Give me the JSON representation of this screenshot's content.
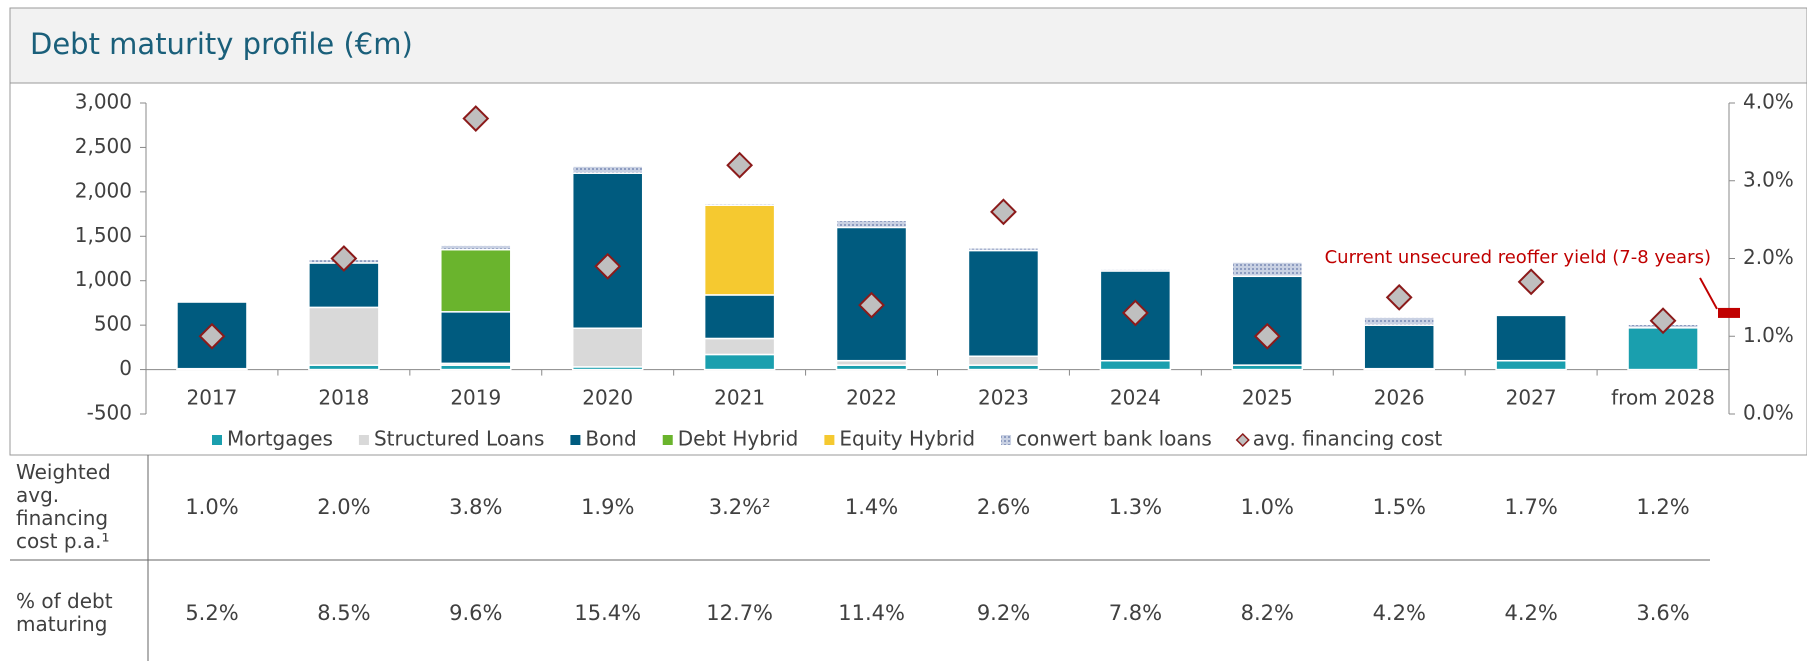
{
  "chart_data": {
    "type": "bar",
    "stacked": true,
    "title": "Debt maturity profile (€m)",
    "categories": [
      "2017",
      "2018",
      "2019",
      "2020",
      "2021",
      "2022",
      "2023",
      "2024",
      "2025",
      "2026",
      "2027",
      "from 2028"
    ],
    "series": [
      {
        "name": "Mortgages",
        "color": "#1a9fae",
        "values": [
          10,
          50,
          50,
          30,
          170,
          50,
          50,
          100,
          50,
          10,
          100,
          470
        ]
      },
      {
        "name": "Structured Loans",
        "color": "#d9d9d9",
        "values": [
          0,
          650,
          20,
          435,
          180,
          50,
          100,
          0,
          0,
          0,
          0,
          0
        ]
      },
      {
        "name": "Bond",
        "color": "#005b7f",
        "values": [
          750,
          500,
          580,
          1745,
          490,
          1500,
          1190,
          1010,
          1000,
          490,
          510,
          0
        ]
      },
      {
        "name": "Debt Hybrid",
        "color": "#6ab42d",
        "values": [
          0,
          0,
          700,
          0,
          0,
          0,
          0,
          0,
          0,
          0,
          0,
          0
        ]
      },
      {
        "name": "Equity Hybrid",
        "color": "#f5c930",
        "values": [
          0,
          0,
          0,
          0,
          1010,
          0,
          0,
          0,
          0,
          0,
          0,
          0
        ]
      },
      {
        "name": "conwert bank loans",
        "color": "#b4bfd6",
        "pattern": "hatch",
        "values": [
          0,
          40,
          50,
          80,
          20,
          80,
          30,
          20,
          160,
          90,
          0,
          40
        ]
      },
      {
        "name": "avg. financing cost",
        "type": "scatter",
        "axis": "y2",
        "color": "#bfbfbf",
        "values": [
          1.0,
          2.0,
          3.8,
          1.9,
          3.2,
          1.4,
          2.6,
          1.3,
          1.0,
          1.5,
          1.7,
          1.2
        ]
      }
    ],
    "ylim": [
      -500,
      3000
    ],
    "yticks": [
      {
        "value": -500,
        "label": "-500"
      },
      0,
      500,
      {
        "value": 1000,
        "label": "1,000"
      },
      {
        "value": 1500,
        "label": "1,500"
      },
      {
        "value": 2000,
        "label": "2,000"
      },
      {
        "value": 2500,
        "label": "2,500"
      },
      {
        "value": 3000,
        "label": "3,000"
      }
    ],
    "y2lim": [
      0,
      4
    ],
    "y2ticks": [
      {
        "value": 0,
        "label": "0.0%"
      },
      {
        "value": 1,
        "label": "1.0%"
      },
      {
        "value": 2,
        "label": "2.0%"
      },
      {
        "value": 3,
        "label": "3.0%"
      },
      {
        "value": 4,
        "label": "4.0%"
      }
    ],
    "annotations": [
      {
        "text": "Current unsecured reoffer yield (7-8 years)",
        "value": 1.3,
        "color": "#c00000"
      }
    ],
    "legend": "bottom"
  },
  "table": {
    "rows": [
      {
        "label": "Weighted avg. financing cost p.a.¹",
        "cells": [
          "1.0%",
          "2.0%",
          "3.8%",
          "1.9%",
          "3.2%²",
          "1.4%",
          "2.6%",
          "1.3%",
          "1.0%",
          "1.5%",
          "1.7%",
          "1.2%"
        ]
      },
      {
        "label": "% of debt maturing",
        "cells": [
          "5.2%",
          "8.5%",
          "9.6%",
          "15.4%",
          "12.7%",
          "11.4%",
          "9.2%",
          "7.8%",
          "8.2%",
          "4.2%",
          "4.2%",
          "3.6%"
        ]
      }
    ]
  }
}
